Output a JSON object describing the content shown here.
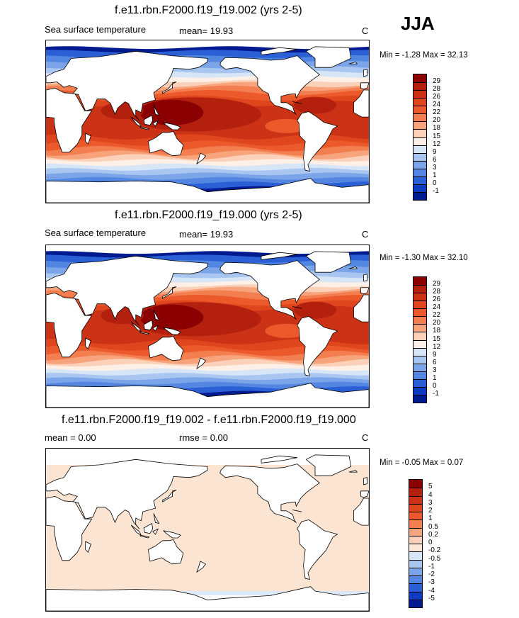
{
  "season": "JJA",
  "panels": [
    {
      "id": "top",
      "title": "f.e11.rbn.F2000.f19_f19.002 (yrs 2-5)",
      "left_label": "Sea surface temperature",
      "mid_label": "mean=  19.93",
      "units": "C",
      "minmax": "Min =  -1.28 Max =  32.13",
      "field": "sst",
      "colorbar_labels": [
        "29",
        "28",
        "26",
        "24",
        "22",
        "20",
        "18",
        "15",
        "12",
        "9",
        "6",
        "3",
        "1",
        "0",
        "-1"
      ],
      "colorbar_colors": [
        "#8b0000",
        "#b3200e",
        "#cc3316",
        "#e0461e",
        "#ec5a2c",
        "#f37e4f",
        "#f7a37c",
        "#fbd2b9",
        "#fef0e6",
        "#d6e6f7",
        "#a9c6f0",
        "#7ba5e8",
        "#5286e0",
        "#2a5fd6",
        "#0d3cc2",
        "#001a8f"
      ]
    },
    {
      "id": "middle",
      "title": "f.e11.rbn.F2000.f19_f19.000 (yrs 2-5)",
      "left_label": "Sea surface temperature",
      "mid_label": "mean=  19.93",
      "units": "C",
      "minmax": "Min =  -1.30 Max =  32.10",
      "field": "sst",
      "colorbar_labels": [
        "29",
        "28",
        "26",
        "24",
        "22",
        "20",
        "18",
        "15",
        "12",
        "9",
        "6",
        "3",
        "1",
        "0",
        "-1"
      ],
      "colorbar_colors": [
        "#8b0000",
        "#b3200e",
        "#cc3316",
        "#e0461e",
        "#ec5a2c",
        "#f37e4f",
        "#f7a37c",
        "#fbd2b9",
        "#fef0e6",
        "#d6e6f7",
        "#a9c6f0",
        "#7ba5e8",
        "#5286e0",
        "#2a5fd6",
        "#0d3cc2",
        "#001a8f"
      ]
    },
    {
      "id": "bottom",
      "title": "f.e11.rbn.F2000.f19_f19.002 - f.e11.rbn.F2000.f19_f19.000",
      "left_label": "mean =   0.00",
      "mid_label": "rmse =   0.00",
      "units": "C",
      "minmax": "Min =  -0.05 Max =   0.07",
      "field": "diff",
      "colorbar_labels": [
        "5",
        "4",
        "3",
        "2",
        "1",
        "0.5",
        "0.2",
        "0",
        "-0.2",
        "-0.5",
        "-1",
        "-2",
        "-3",
        "-4",
        "-5"
      ],
      "colorbar_colors": [
        "#8b0000",
        "#b3200e",
        "#cc3316",
        "#e0461e",
        "#ec5a2c",
        "#f37e4f",
        "#f7a37c",
        "#fbd2b9",
        "#fbe6d8",
        "#d6e6f7",
        "#a9c6f0",
        "#7ba5e8",
        "#5286e0",
        "#2a5fd6",
        "#0d3cc2",
        "#001a8f"
      ]
    }
  ],
  "colors": {
    "land": "#ffffff",
    "outline": "#000000",
    "diff_fill": "#fbe4d2",
    "diff_cold": "#dbe9f8"
  }
}
